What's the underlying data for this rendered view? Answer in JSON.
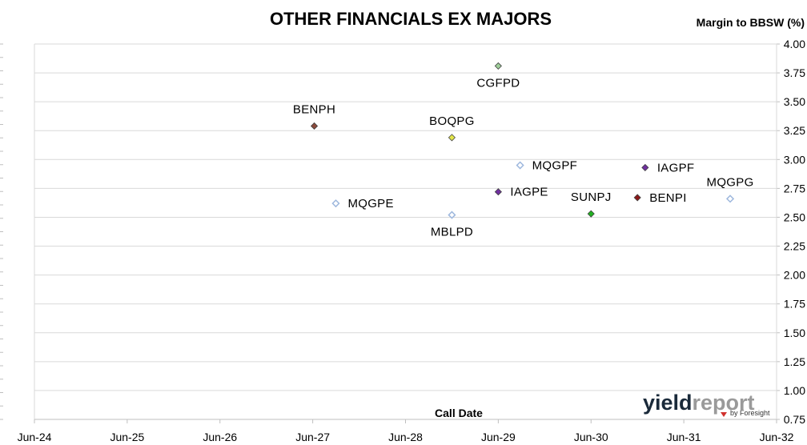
{
  "chart_data": {
    "type": "scatter",
    "title": "OTHER FINANCIALS EX MAJORS",
    "xlabel": "Call Date",
    "ylabel": "Margin to BBSW (%)",
    "x_ticks": [
      "Jun-24",
      "Jun-25",
      "Jun-26",
      "Jun-27",
      "Jun-28",
      "Jun-29",
      "Jun-30",
      "Jun-31",
      "Jun-32"
    ],
    "xlim": [
      "2024-06",
      "2032-06"
    ],
    "ylim": [
      0.75,
      4.0
    ],
    "y_ticks": [
      "0.75",
      "1.00",
      "1.25",
      "1.50",
      "1.75",
      "2.00",
      "2.25",
      "2.50",
      "2.75",
      "3.00",
      "3.25",
      "3.50",
      "3.75",
      "4.00"
    ],
    "y_axis_position": "right",
    "grid": "horizontal",
    "legend": "none",
    "points": [
      {
        "label": "CGFPD",
        "x": "2029-06-01",
        "y": 3.81,
        "color": "#9fcf9a",
        "label_pos": "below"
      },
      {
        "label": "BENPH",
        "x": "2027-06-07",
        "y": 3.29,
        "color": "#8b4a3c",
        "label_pos": "above"
      },
      {
        "label": "BOQPG",
        "x": "2028-12-01",
        "y": 3.19,
        "color": "#e3e64a",
        "label_pos": "above"
      },
      {
        "label": "MQGPF",
        "x": "2029-08-26",
        "y": 2.95,
        "color": "#c6d9f1",
        "label_pos": "right"
      },
      {
        "label": "IAGPF",
        "x": "2031-01-01",
        "y": 2.93,
        "color": "#7030a0",
        "label_pos": "right"
      },
      {
        "label": "IAGPE",
        "x": "2029-06-01",
        "y": 2.72,
        "color": "#7030a0",
        "label_pos": "right"
      },
      {
        "label": "SUNPJ",
        "x": "2030-06-01",
        "y": 2.53,
        "color": "#21b021",
        "label_pos": "above"
      },
      {
        "label": "BENPI",
        "x": "2030-12-01",
        "y": 2.67,
        "color": "#8b1a1a",
        "label_pos": "right"
      },
      {
        "label": "MQGPG",
        "x": "2031-12-01",
        "y": 2.66,
        "color": "#c6d9f1",
        "label_pos": "above"
      },
      {
        "label": "MQGPE",
        "x": "2027-08-31",
        "y": 2.62,
        "color": "#c6d9f1",
        "label_pos": "right"
      },
      {
        "label": "MBLPD",
        "x": "2028-12-01",
        "y": 2.52,
        "color": "#c6d9f1",
        "label_pos": "below"
      }
    ]
  },
  "logo": {
    "text": "yieldreport",
    "subtext": "by Foresight",
    "colors": {
      "yield": "#1a2a3a",
      "report": "#9a9a9a",
      "arrow": "#d0312d"
    }
  }
}
